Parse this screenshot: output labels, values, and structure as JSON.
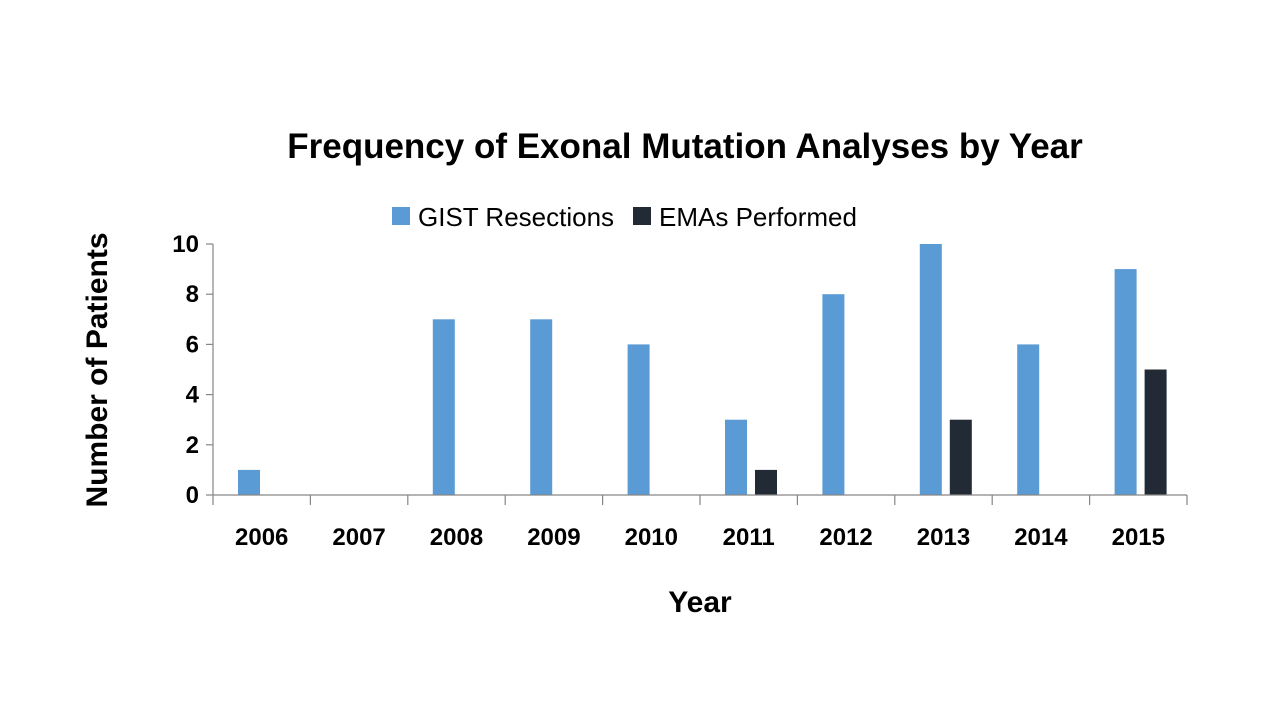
{
  "chart_data": {
    "type": "bar",
    "title": "Frequency of Exonal Mutation Analyses by Year",
    "xlabel": "Year",
    "ylabel": "Number of Patients",
    "categories": [
      "2006",
      "2007",
      "2008",
      "2009",
      "2010",
      "2011",
      "2012",
      "2013",
      "2014",
      "2015"
    ],
    "series": [
      {
        "name": "GIST Resections",
        "color": "#5B9BD5",
        "values": [
          1,
          0,
          7,
          7,
          6,
          3,
          8,
          10,
          6,
          9
        ]
      },
      {
        "name": "EMAs Performed",
        "color": "#222A35",
        "values": [
          0,
          0,
          0,
          0,
          0,
          1,
          0,
          3,
          0,
          5
        ]
      }
    ],
    "ylim": [
      0,
      10
    ],
    "yticks": [
      "0",
      "2",
      "4",
      "6",
      "8",
      "10"
    ],
    "grid": false,
    "legend_position": "top"
  }
}
